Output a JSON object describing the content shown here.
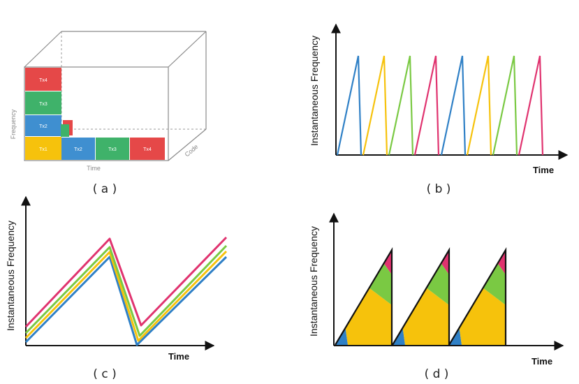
{
  "colors": {
    "blue": "#2f80c6",
    "yellow": "#f6c20c",
    "green": "#7ac943",
    "pink": "#e0336f",
    "red": "#e54848",
    "cube_green": "#3fb26a",
    "cube_blue": "#3f8fd0"
  },
  "panel_a": {
    "caption": "( a )",
    "frequency_label": "Frequency",
    "time_label": "Time",
    "code_label": "Code",
    "left_stack": [
      "Tx4",
      "Tx3",
      "Tx2",
      "Tx1"
    ],
    "bottom_row": [
      "Tx2",
      "Tx3",
      "Tx4"
    ]
  },
  "panel_b": {
    "caption": "( b )",
    "y_label": "Instantaneous Frequency",
    "x_label": "Time",
    "ramp_colors": [
      "blue",
      "yellow",
      "green",
      "pink",
      "blue",
      "yellow",
      "green",
      "pink"
    ]
  },
  "panel_c": {
    "caption": "( c )",
    "y_label": "Instantaneous Frequency",
    "x_label": "Time",
    "line_colors": [
      "blue",
      "yellow",
      "green",
      "pink"
    ]
  },
  "panel_d": {
    "caption": "( d )",
    "y_label": "Instantaneous Frequency",
    "x_label": "Time",
    "segment_colors": [
      "blue",
      "yellow",
      "green",
      "pink"
    ]
  }
}
